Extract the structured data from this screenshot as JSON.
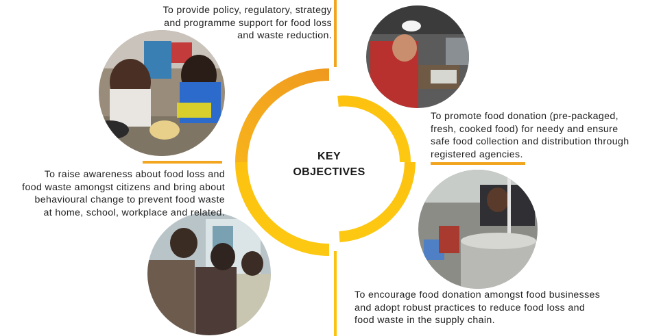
{
  "center": {
    "line1": "KEY",
    "line2": "OBJECTIVES"
  },
  "objectives": {
    "policy": "To provide policy, regulatory, strategy\nand programme support for food loss\nand waste reduction.",
    "donation": "To promote food donation (pre-packaged,\nfresh, cooked food) for needy and ensure\nsafe food collection and distribution through\nregistered agencies.",
    "awareness": "To raise awareness about food loss and\nfood waste amongst citizens and bring about\nbehavioural change to prevent food waste\nat home, school, workplace and related.",
    "businesses": "To encourage food donation amongst food businesses\nand adopt robust practices to reduce food loss and\nfood waste in the supply chain."
  },
  "colors": {
    "arc_orange": "#f2a51e",
    "arc_yellow": "#fcc410",
    "text": "#222222"
  },
  "photos": {
    "top_left": "children-eating-photo",
    "top_right": "food-donation-distribution-photo",
    "bottom_left": "awareness-event-photo",
    "bottom_right": "cooked-food-vessel-photo"
  }
}
